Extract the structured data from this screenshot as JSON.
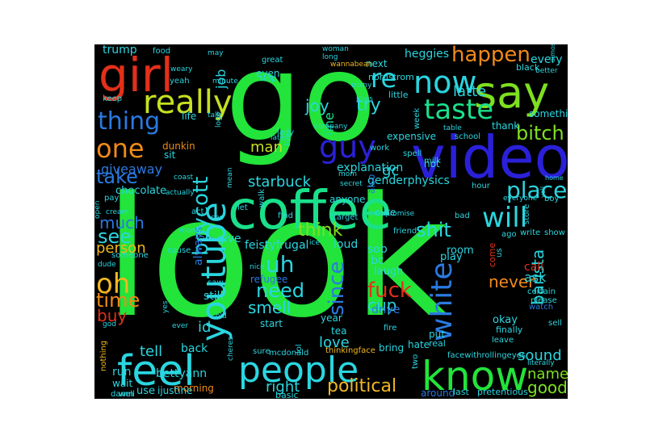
{
  "wordcloud": {
    "background": "#000000",
    "words": [
      {
        "text": "look",
        "color": "#22e43a"
      },
      {
        "text": "go",
        "color": "#22e43a"
      },
      {
        "text": "video",
        "color": "#2a20d8"
      },
      {
        "text": "coffee",
        "color": "#1ae08a"
      },
      {
        "text": "know",
        "color": "#22e43a"
      },
      {
        "text": "people",
        "color": "#2ad6e0"
      },
      {
        "text": "feel",
        "color": "#2ad6e0"
      },
      {
        "text": "girl",
        "color": "#e2301a"
      },
      {
        "text": "say",
        "color": "#7ee020"
      },
      {
        "text": "youtube",
        "color": "#2ad6e0"
      },
      {
        "text": "taste",
        "color": "#1ae08a"
      },
      {
        "text": "really",
        "color": "#c6e020"
      },
      {
        "text": "now",
        "color": "#2ad6e0"
      },
      {
        "text": "will",
        "color": "#2ad6e0"
      },
      {
        "text": "guy",
        "color": "#2a20d8"
      },
      {
        "text": "white",
        "color": "#2a7ae0"
      },
      {
        "text": "one",
        "color": "#f08a1a"
      },
      {
        "text": "thing",
        "color": "#2a7ae0"
      },
      {
        "text": "oh",
        "color": "#f0b820"
      },
      {
        "text": "place",
        "color": "#2ad6e0"
      },
      {
        "text": "bitch",
        "color": "#7ee020"
      },
      {
        "text": "happen",
        "color": "#f08a1a"
      },
      {
        "text": "re",
        "color": "#2ad6e0"
      },
      {
        "text": "boycott",
        "color": "#2ad6e0"
      },
      {
        "text": "fuck",
        "color": "#e2301a"
      },
      {
        "text": "take",
        "color": "#2a7ae0"
      },
      {
        "text": "uh",
        "color": "#2ad6e0"
      },
      {
        "text": "need",
        "color": "#2ad6e0"
      },
      {
        "text": "time",
        "color": "#f08a1a"
      },
      {
        "text": "since",
        "color": "#2a7ae0"
      },
      {
        "text": "shit",
        "color": "#2ad6e0"
      },
      {
        "text": "see",
        "color": "#2ad6e0"
      },
      {
        "text": "think",
        "color": "#7ee020"
      },
      {
        "text": "much",
        "color": "#2a7ae0"
      },
      {
        "text": "barista",
        "color": "#2ad6e0"
      },
      {
        "text": "never",
        "color": "#f08a1a"
      },
      {
        "text": "try",
        "color": "#2ad6e0"
      },
      {
        "text": "latte",
        "color": "#2ad6e0"
      },
      {
        "text": "joy",
        "color": "#2ad6e0"
      },
      {
        "text": "man",
        "color": "#c6e020"
      },
      {
        "text": "buy",
        "color": "#e2301a"
      },
      {
        "text": "love",
        "color": "#2ad6e0"
      },
      {
        "text": "smell",
        "color": "#2ad6e0"
      },
      {
        "text": "cup",
        "color": "#2ad6e0"
      },
      {
        "text": "right",
        "color": "#2ad6e0"
      },
      {
        "text": "political",
        "color": "#f0b820"
      },
      {
        "text": "good",
        "color": "#7ee020"
      },
      {
        "text": "name",
        "color": "#7ee020"
      },
      {
        "text": "sound",
        "color": "#2ad6e0"
      },
      {
        "text": "ask",
        "color": "#2ad6e0"
      },
      {
        "text": "tell",
        "color": "#2ad6e0"
      },
      {
        "text": "starbuck",
        "color": "#2ad6e0"
      },
      {
        "text": "person",
        "color": "#f0b820"
      },
      {
        "text": "always",
        "color": "#2a7ae0"
      },
      {
        "text": "job",
        "color": "#2ad6e0"
      },
      {
        "text": "line",
        "color": "#1ae08a"
      },
      {
        "text": "gc",
        "color": "#2ad6e0"
      },
      {
        "text": "giveaway",
        "color": "#2a7ae0"
      },
      {
        "text": "heggies",
        "color": "#2ad6e0"
      },
      {
        "text": "every",
        "color": "#2ad6e0"
      },
      {
        "text": "trump",
        "color": "#2ad6e0"
      },
      {
        "text": "id",
        "color": "#2ad6e0"
      },
      {
        "text": "bettyann",
        "color": "#2ad6e0"
      },
      {
        "text": "explanation",
        "color": "#2ad6e0"
      },
      {
        "text": "genderphysics",
        "color": "#2ad6e0"
      },
      {
        "text": "expensive",
        "color": "#2ad6e0"
      },
      {
        "text": "feistyfrugal",
        "color": "#2ad6e0"
      },
      {
        "text": "chocolate",
        "color": "#2ad6e0"
      },
      {
        "text": "refugee",
        "color": "#2a7ae0"
      },
      {
        "text": "around",
        "color": "#2a7ae0"
      },
      {
        "text": "life",
        "color": "#2ad6e0"
      },
      {
        "text": "sit",
        "color": "#2ad6e0"
      },
      {
        "text": "dunkin",
        "color": "#f08a1a"
      },
      {
        "text": "thank",
        "color": "#2ad6e0"
      },
      {
        "text": "something",
        "color": "#2ad6e0"
      },
      {
        "text": "even",
        "color": "#2ad6e0"
      },
      {
        "text": "next",
        "color": "#2ad6e0"
      },
      {
        "text": "little",
        "color": "#2ad6e0"
      },
      {
        "text": "nordstrom",
        "color": "#2ad6e0"
      },
      {
        "text": "hot",
        "color": "#2ad6e0"
      },
      {
        "text": "also",
        "color": "#2a7ae0"
      },
      {
        "text": "bc",
        "color": "#2ad6e0"
      },
      {
        "text": "laugh",
        "color": "#2ad6e0"
      },
      {
        "text": "drive",
        "color": "#2a7ae0"
      },
      {
        "text": "loud",
        "color": "#2ad6e0"
      },
      {
        "text": "sob",
        "color": "#2ad6e0"
      },
      {
        "text": "room",
        "color": "#2ad6e0"
      },
      {
        "text": "play",
        "color": "#2ad6e0"
      },
      {
        "text": "still",
        "color": "#2ad6e0"
      },
      {
        "text": "give",
        "color": "#2ad6e0"
      },
      {
        "text": "start",
        "color": "#2ad6e0"
      },
      {
        "text": "tea",
        "color": "#2ad6e0"
      },
      {
        "text": "okay",
        "color": "#2ad6e0"
      },
      {
        "text": "call",
        "color": "#e2301a"
      },
      {
        "text": "cute",
        "color": "#2ad6e0"
      },
      {
        "text": "anyone",
        "color": "#2ad6e0"
      },
      {
        "text": "finally",
        "color": "#2ad6e0"
      },
      {
        "text": "morning",
        "color": "#f08a1a"
      },
      {
        "text": "use",
        "color": "#2ad6e0"
      },
      {
        "text": "ijustine",
        "color": "#2ad6e0"
      },
      {
        "text": "back",
        "color": "#2ad6e0"
      },
      {
        "text": "run",
        "color": "#2ad6e0"
      },
      {
        "text": "wait",
        "color": "#2ad6e0"
      },
      {
        "text": "nothing",
        "color": "#f0b820"
      },
      {
        "text": "damn",
        "color": "#2ad6e0"
      },
      {
        "text": "well",
        "color": "#2ad6e0"
      },
      {
        "text": "basic",
        "color": "#2ad6e0"
      },
      {
        "text": "pretentious",
        "color": "#2ad6e0"
      },
      {
        "text": "last",
        "color": "#2ad6e0"
      },
      {
        "text": "facewithrollingeyes",
        "color": "#2ad6e0"
      },
      {
        "text": "literally",
        "color": "#2ad6e0"
      },
      {
        "text": "leave",
        "color": "#2ad6e0"
      },
      {
        "text": "mcdonald",
        "color": "#2ad6e0"
      },
      {
        "text": "sure",
        "color": "#2ad6e0"
      },
      {
        "text": "lol",
        "color": "#2ad6e0"
      },
      {
        "text": "bring",
        "color": "#2ad6e0"
      },
      {
        "text": "hate",
        "color": "#2ad6e0"
      },
      {
        "text": "put",
        "color": "#2ad6e0"
      },
      {
        "text": "real",
        "color": "#2ad6e0"
      },
      {
        "text": "fire",
        "color": "#2ad6e0"
      },
      {
        "text": "year",
        "color": "#2ad6e0"
      },
      {
        "text": "thinkingface",
        "color": "#f0b820"
      },
      {
        "text": "two",
        "color": "#2ad6e0"
      },
      {
        "text": "certain",
        "color": "#2ad6e0"
      },
      {
        "text": "please",
        "color": "#2ad6e0"
      },
      {
        "text": "watch",
        "color": "#2a7ae0"
      },
      {
        "text": "sell",
        "color": "#2ad6e0"
      },
      {
        "text": "us",
        "color": "#2ad6e0"
      },
      {
        "text": "come",
        "color": "#e2301a"
      },
      {
        "text": "write",
        "color": "#2ad6e0"
      },
      {
        "text": "show",
        "color": "#2ad6e0"
      },
      {
        "text": "ago",
        "color": "#2ad6e0"
      },
      {
        "text": "bad",
        "color": "#2ad6e0"
      },
      {
        "text": "friend",
        "color": "#2ad6e0"
      },
      {
        "text": "target",
        "color": "#2ad6e0"
      },
      {
        "text": "promise",
        "color": "#2ad6e0"
      },
      {
        "text": "secret",
        "color": "#2ad6e0"
      },
      {
        "text": "spell",
        "color": "#2ad6e0"
      },
      {
        "text": "milk",
        "color": "#2ad6e0"
      },
      {
        "text": "school",
        "color": "#2ad6e0"
      },
      {
        "text": "hour",
        "color": "#2ad6e0"
      },
      {
        "text": "everyone",
        "color": "#2ad6e0"
      },
      {
        "text": "boy",
        "color": "#2ad6e0"
      },
      {
        "text": "store",
        "color": "#2ad6e0"
      },
      {
        "text": "home",
        "color": "#2ad6e0"
      },
      {
        "text": "yell",
        "color": "#2ad6e0"
      },
      {
        "text": "black",
        "color": "#2ad6e0"
      },
      {
        "text": "better",
        "color": "#2ad6e0"
      },
      {
        "text": "almost",
        "color": "#2ad6e0"
      },
      {
        "text": "food",
        "color": "#2ad6e0"
      },
      {
        "text": "may",
        "color": "#2ad6e0"
      },
      {
        "text": "weary",
        "color": "#2ad6e0"
      },
      {
        "text": "yeah",
        "color": "#2ad6e0"
      },
      {
        "text": "minute",
        "color": "#2ad6e0"
      },
      {
        "text": "keep",
        "color": "#2ad6e0"
      },
      {
        "text": "cream",
        "color": "#2ad6e0"
      },
      {
        "text": "great",
        "color": "#2ad6e0"
      },
      {
        "text": "stop",
        "color": "#2ad6e0"
      },
      {
        "text": "woman",
        "color": "#2ad6e0"
      },
      {
        "text": "long",
        "color": "#2ad6e0"
      },
      {
        "text": "wannabean",
        "color": "#f0b820"
      },
      {
        "text": "many",
        "color": "#2ad6e0"
      },
      {
        "text": "louis",
        "color": "#2ad6e0"
      },
      {
        "text": "week",
        "color": "#2ad6e0"
      },
      {
        "text": "table",
        "color": "#2ad6e0"
      },
      {
        "text": "company",
        "color": "#2ad6e0"
      },
      {
        "text": "talk",
        "color": "#2ad6e0"
      },
      {
        "text": "logo",
        "color": "#2ad6e0"
      },
      {
        "text": "lady",
        "color": "#2ad6e0"
      },
      {
        "text": "late",
        "color": "#2ad6e0"
      },
      {
        "text": "10k",
        "color": "#2ad6e0"
      },
      {
        "text": "work",
        "color": "#2ad6e0"
      },
      {
        "text": "mom",
        "color": "#2ad6e0"
      },
      {
        "text": "coast",
        "color": "#2ad6e0"
      },
      {
        "text": "actually",
        "color": "#2ad6e0"
      },
      {
        "text": "pay",
        "color": "#2ad6e0"
      },
      {
        "text": "mean",
        "color": "#2ad6e0"
      },
      {
        "text": "act",
        "color": "#2ad6e0"
      },
      {
        "text": "let",
        "color": "#2ad6e0"
      },
      {
        "text": "walk",
        "color": "#2ad6e0"
      },
      {
        "text": "find",
        "color": "#2ad6e0"
      },
      {
        "text": "ceo",
        "color": "#2ad6e0"
      },
      {
        "text": "open",
        "color": "#2ad6e0"
      },
      {
        "text": "money",
        "color": "#2ad6e0"
      },
      {
        "text": "cause",
        "color": "#2ad6e0"
      },
      {
        "text": "someone",
        "color": "#2ad6e0"
      },
      {
        "text": "dude",
        "color": "#2ad6e0"
      },
      {
        "text": "nice",
        "color": "#2ad6e0"
      },
      {
        "text": "saw",
        "color": "#2ad6e0"
      },
      {
        "text": "old",
        "color": "#2ad6e0"
      },
      {
        "text": "yes",
        "color": "#2ad6e0"
      },
      {
        "text": "god",
        "color": "#2ad6e0"
      },
      {
        "text": "ever",
        "color": "#2ad6e0"
      },
      {
        "text": "cheres",
        "color": "#2ad6e0"
      },
      {
        "text": "ice",
        "color": "#2ad6e0"
      }
    ]
  }
}
